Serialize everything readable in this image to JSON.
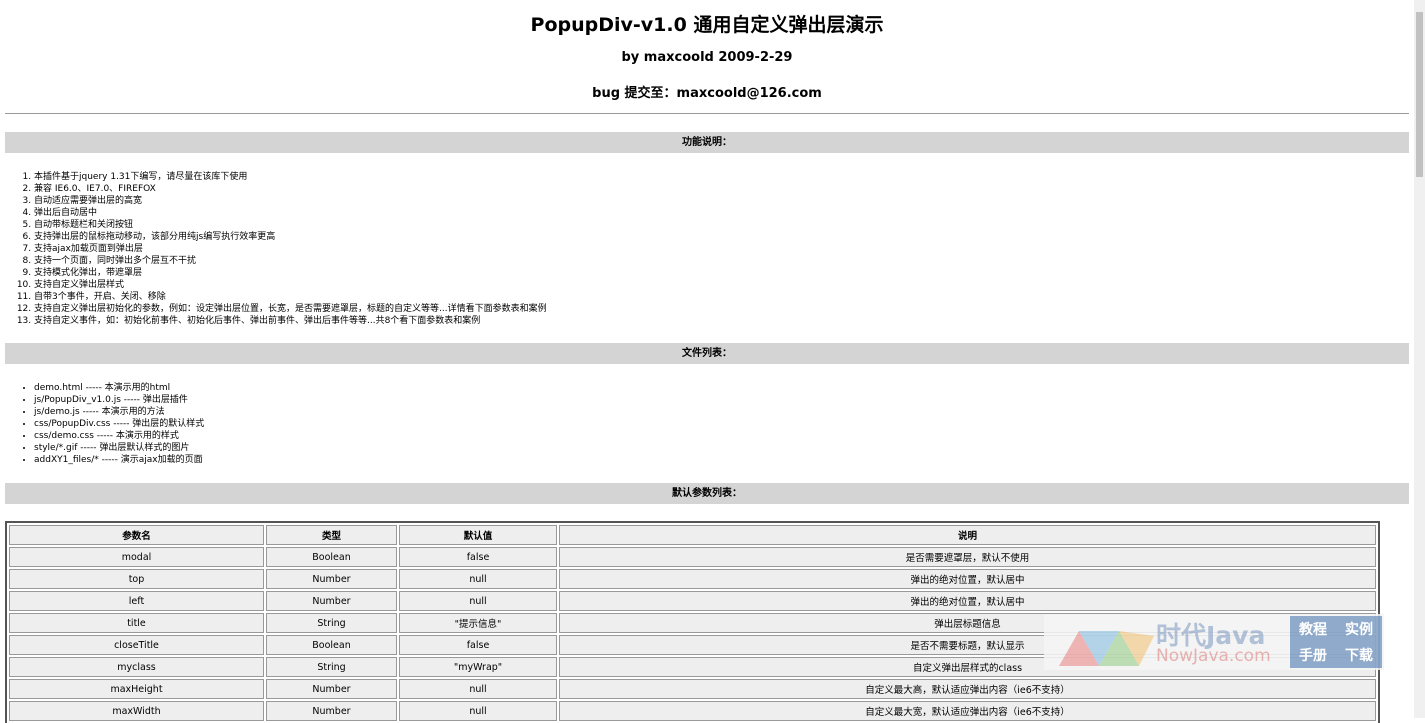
{
  "header": {
    "title": "PopupDiv-v1.0 通用自定义弹出层演示",
    "byline": "by maxcoold 2009-2-29",
    "bug": "bug 提交至：maxcoold@126.com"
  },
  "features": {
    "heading": "功能说明：",
    "items": [
      "本插件基于jquery 1.31下编写，请尽量在该库下使用",
      "兼容 IE6.0、IE7.0、FIREFOX",
      "自动适应需要弹出层的高宽",
      "弹出后自动居中",
      "自动带标题栏和关闭按钮",
      "支持弹出层的鼠标拖动移动，该部分用纯js编写执行效率更高",
      "支持ajax加载页面到弹出层",
      "支持一个页面，同时弹出多个层互不干扰",
      "支持模式化弹出，带遮罩层",
      "支持自定义弹出层样式",
      "自带3个事件，开启、关闭、移除",
      "支持自定义弹出层初始化的参数，例如：设定弹出层位置，长宽，是否需要遮罩层，标题的自定义等等...详情看下面参数表和案例",
      "支持自定义事件，如：初始化前事件、初始化后事件、弹出前事件、弹出后事件等等...共8个看下面参数表和案例"
    ]
  },
  "files": {
    "heading": "文件列表：",
    "items": [
      "demo.html ----- 本演示用的html",
      "js/PopupDiv_v1.0.js ----- 弹出层插件",
      "js/demo.js ----- 本演示用的方法",
      "css/PopupDiv.css ----- 弹出层的默认样式",
      "css/demo.css ----- 本演示用的样式",
      "style/*.gif ----- 弹出层默认样式的图片",
      "addXY1_files/* ----- 演示ajax加载的页面"
    ]
  },
  "params": {
    "heading": "默认参数列表：",
    "table": {
      "columns": [
        "参数名",
        "类型",
        "默认值",
        "说明"
      ],
      "rows": [
        [
          "modal",
          "Boolean",
          "false",
          "是否需要遮罩层，默认不使用"
        ],
        [
          "top",
          "Number",
          "null",
          "弹出的绝对位置，默认居中"
        ],
        [
          "left",
          "Number",
          "null",
          "弹出的绝对位置，默认居中"
        ],
        [
          "title",
          "String",
          "\"提示信息\"",
          "弹出层标题信息"
        ],
        [
          "closeTitle",
          "Boolean",
          "false",
          "是否不需要标题，默认显示"
        ],
        [
          "myclass",
          "String",
          "\"myWrap\"",
          "自定义弹出层样式的class"
        ],
        [
          "maxHeight",
          "Number",
          "null",
          "自定义最大高，默认适应弹出内容（ie6不支持）"
        ],
        [
          "maxWidth",
          "Number",
          "null",
          "自定义最大宽，默认适应弹出内容（ie6不支持）"
        ]
      ]
    }
  },
  "watermark": {
    "brand": "时代Java",
    "site": "NowJava.com",
    "links": [
      "教程",
      "实例",
      "手册",
      "下载"
    ]
  }
}
